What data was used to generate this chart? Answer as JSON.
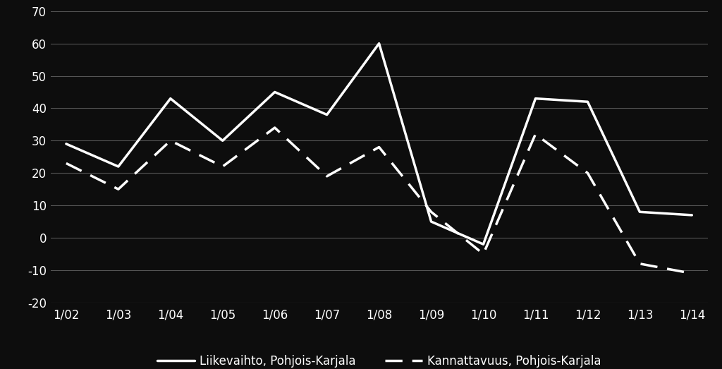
{
  "x_labels": [
    "1/02",
    "1/03",
    "1/04",
    "1/05",
    "1/06",
    "1/07",
    "1/08",
    "1/09",
    "1/10",
    "1/11",
    "1/12",
    "1/13",
    "1/14"
  ],
  "liikevaihto": [
    29,
    22,
    43,
    30,
    45,
    38,
    60,
    5,
    -2,
    43,
    42,
    8,
    7
  ],
  "kannattavuus": [
    23,
    15,
    30,
    22,
    34,
    19,
    28,
    8,
    -5,
    32,
    20,
    -8,
    -11
  ],
  "line1_color": "#ffffff",
  "line2_color": "#ffffff",
  "bg_color": "#0d0d0d",
  "plot_bg_color": "#0d0d0d",
  "grid_color": "#555555",
  "text_color": "#ffffff",
  "legend1": "Liikevaihto, Pohjois-Karjala",
  "legend2": "Kannattavuus, Pohjois-Karjala",
  "ylim": [
    -20,
    70
  ],
  "yticks": [
    -20,
    -10,
    0,
    10,
    20,
    30,
    40,
    50,
    60,
    70
  ],
  "linewidth": 2.5,
  "fontsize_tick": 12,
  "fontsize_legend": 12
}
